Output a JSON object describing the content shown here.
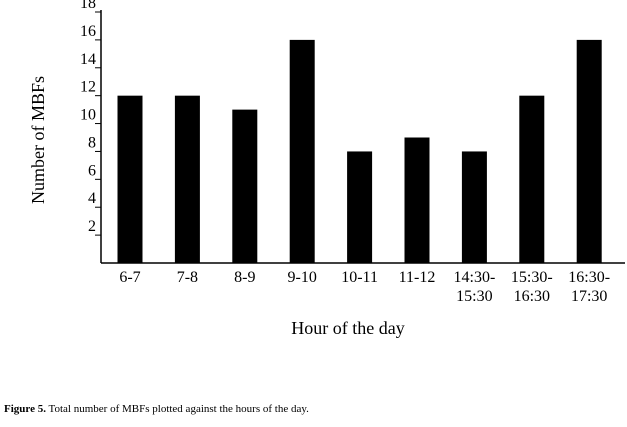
{
  "chart_data": {
    "type": "bar",
    "y_label": "Number of MBFs",
    "x_label": "Hour of the day",
    "categories": [
      "6-7",
      "7-8",
      "8-9",
      "9-10",
      "10-11",
      "11-12",
      "14:30-\n15:30",
      "15:30-\n16:30",
      "16:30-\n17:30"
    ],
    "values": [
      12,
      12,
      11,
      16,
      8,
      9,
      8,
      12,
      16
    ],
    "color": "#000000",
    "ylim": [
      0,
      18
    ],
    "yticks": [
      2,
      4,
      6,
      8,
      10,
      12,
      14,
      16,
      18
    ]
  },
  "caption": {
    "label": "Figure 5.",
    "text": "Total number of MBFs plotted against the hours of the day."
  }
}
